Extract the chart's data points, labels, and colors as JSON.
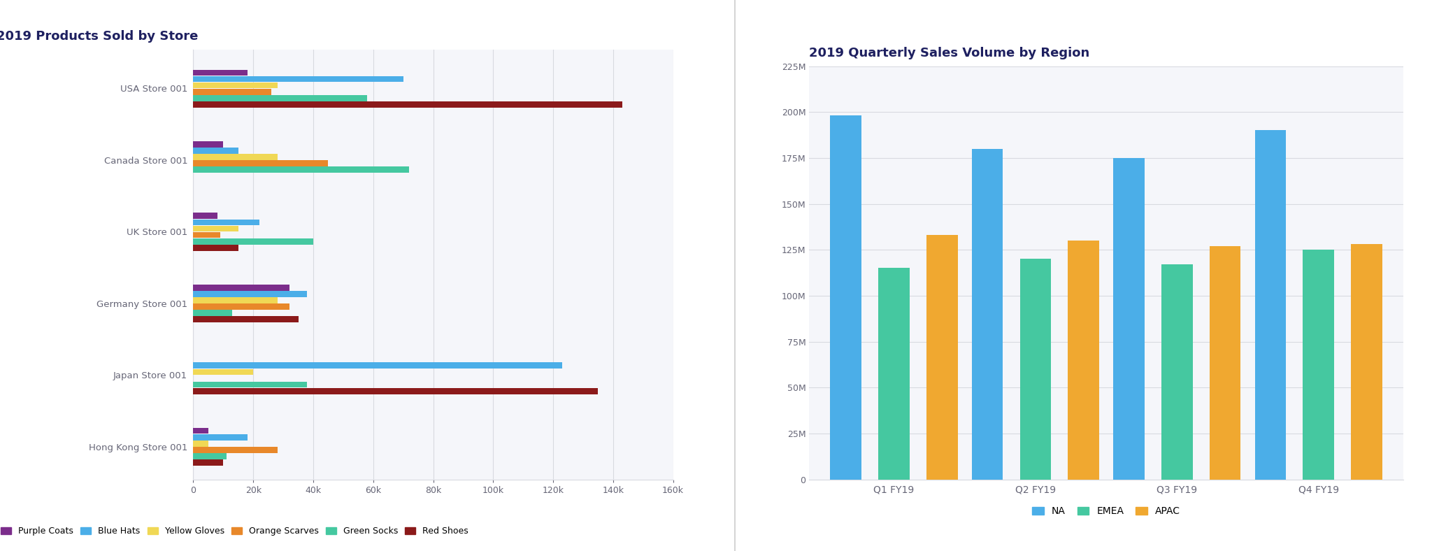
{
  "left_title": "2019 Products Sold by Store",
  "right_title": "2019 Quarterly Sales Volume by Region",
  "stores": [
    "USA Store 001",
    "Canada Store 001",
    "UK Store 001",
    "Germany Store 001",
    "Japan Store 001",
    "Hong Kong Store 001"
  ],
  "products": [
    "Purple Coats",
    "Blue Hats",
    "Yellow Gloves",
    "Orange Scarves",
    "Green Socks",
    "Red Shoes"
  ],
  "product_colors": [
    "#7b2d8b",
    "#4baee8",
    "#f0d855",
    "#e8882a",
    "#45c8a0",
    "#8b1a1a"
  ],
  "bar_data": {
    "USA Store 001": [
      18000,
      70000,
      28000,
      26000,
      58000,
      143000
    ],
    "Canada Store 001": [
      10000,
      15000,
      28000,
      45000,
      72000,
      0
    ],
    "UK Store 001": [
      8000,
      22000,
      15000,
      9000,
      40000,
      15000
    ],
    "Germany Store 001": [
      32000,
      38000,
      28000,
      32000,
      13000,
      35000
    ],
    "Japan Store 001": [
      0,
      123000,
      20000,
      0,
      38000,
      135000
    ],
    "Hong Kong Store 001": [
      5000,
      18000,
      5000,
      28000,
      11000,
      10000
    ]
  },
  "left_xlim": [
    0,
    160000
  ],
  "left_xticks": [
    0,
    20000,
    40000,
    60000,
    80000,
    100000,
    120000,
    140000,
    160000
  ],
  "left_xticklabels": [
    "0",
    "20k",
    "40k",
    "60k",
    "80k",
    "100k",
    "120k",
    "140k",
    "160k"
  ],
  "quarters": [
    "Q1 FY19",
    "Q2 FY19",
    "Q3 FY19",
    "Q4 FY19"
  ],
  "regions": [
    "NA",
    "EMEA",
    "APAC"
  ],
  "region_colors": [
    "#4baee8",
    "#45c8a0",
    "#f0a830"
  ],
  "right_data": {
    "NA": [
      198000000,
      180000000,
      175000000,
      190000000
    ],
    "EMEA": [
      115000000,
      120000000,
      117000000,
      125000000
    ],
    "APAC": [
      133000000,
      130000000,
      127000000,
      128000000
    ]
  },
  "right_ylim": [
    0,
    225000000
  ],
  "right_yticks": [
    0,
    25000000,
    50000000,
    75000000,
    100000000,
    125000000,
    150000000,
    175000000,
    200000000,
    225000000
  ],
  "right_yticklabels": [
    "0",
    "25M",
    "50M",
    "75M",
    "100M",
    "125M",
    "150M",
    "175M",
    "200M",
    "225M"
  ],
  "bg_color": "#ffffff",
  "panel_bg": "#f5f6fa",
  "grid_color": "#d8dae0",
  "title_color": "#1e2060",
  "label_color": "#666677"
}
